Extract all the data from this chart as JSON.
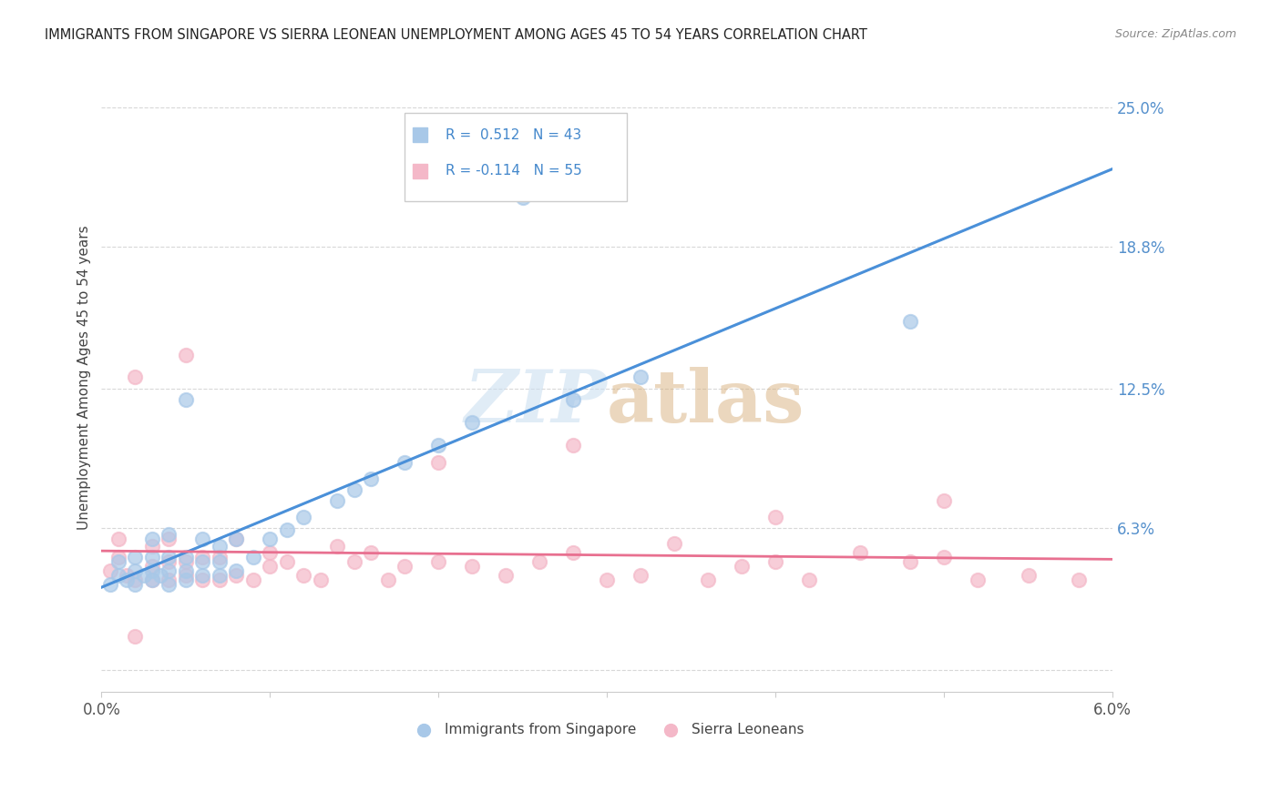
{
  "title": "IMMIGRANTS FROM SINGAPORE VS SIERRA LEONEAN UNEMPLOYMENT AMONG AGES 45 TO 54 YEARS CORRELATION CHART",
  "source": "Source: ZipAtlas.com",
  "ylabel": "Unemployment Among Ages 45 to 54 years",
  "xlim": [
    0.0,
    0.06
  ],
  "ylim": [
    -0.01,
    0.27
  ],
  "yticks": [
    0.0,
    0.063,
    0.125,
    0.188,
    0.25
  ],
  "ytick_labels": [
    "",
    "6.3%",
    "12.5%",
    "18.8%",
    "25.0%"
  ],
  "xticks": [
    0.0,
    0.01,
    0.02,
    0.03,
    0.04,
    0.05,
    0.06
  ],
  "xtick_labels": [
    "0.0%",
    "",
    "",
    "",
    "",
    "",
    "6.0%"
  ],
  "legend_labels": [
    "Immigrants from Singapore",
    "Sierra Leoneans"
  ],
  "r1": 0.512,
  "n1": 43,
  "r2": -0.114,
  "n2": 55,
  "color_blue": "#a8c8e8",
  "color_pink": "#f4b8c8",
  "color_blue_line": "#4a90d9",
  "color_pink_line": "#e87090",
  "color_gray_dash": "#b0b8c0",
  "watermark_color": "#c8ddf0",
  "background_color": "#ffffff",
  "grid_color": "#d8d8d8",
  "singapore_x": [
    0.0005,
    0.001,
    0.001,
    0.0015,
    0.002,
    0.002,
    0.002,
    0.0025,
    0.003,
    0.003,
    0.003,
    0.003,
    0.0035,
    0.004,
    0.004,
    0.004,
    0.004,
    0.005,
    0.005,
    0.005,
    0.005,
    0.006,
    0.006,
    0.006,
    0.007,
    0.007,
    0.007,
    0.008,
    0.008,
    0.009,
    0.01,
    0.011,
    0.012,
    0.014,
    0.015,
    0.016,
    0.018,
    0.02,
    0.022,
    0.025,
    0.028,
    0.032,
    0.048
  ],
  "singapore_y": [
    0.038,
    0.042,
    0.048,
    0.04,
    0.038,
    0.044,
    0.05,
    0.042,
    0.04,
    0.044,
    0.05,
    0.058,
    0.042,
    0.038,
    0.044,
    0.05,
    0.06,
    0.04,
    0.044,
    0.05,
    0.12,
    0.042,
    0.048,
    0.058,
    0.042,
    0.048,
    0.055,
    0.044,
    0.058,
    0.05,
    0.058,
    0.062,
    0.068,
    0.075,
    0.08,
    0.085,
    0.092,
    0.1,
    0.11,
    0.21,
    0.12,
    0.13,
    0.155
  ],
  "sierraleone_x": [
    0.0005,
    0.001,
    0.001,
    0.0015,
    0.002,
    0.002,
    0.003,
    0.003,
    0.003,
    0.004,
    0.004,
    0.004,
    0.005,
    0.005,
    0.005,
    0.006,
    0.006,
    0.007,
    0.007,
    0.008,
    0.008,
    0.009,
    0.01,
    0.01,
    0.011,
    0.012,
    0.013,
    0.014,
    0.015,
    0.016,
    0.017,
    0.018,
    0.02,
    0.022,
    0.024,
    0.026,
    0.028,
    0.03,
    0.032,
    0.034,
    0.036,
    0.038,
    0.04,
    0.042,
    0.045,
    0.048,
    0.05,
    0.052,
    0.055,
    0.058,
    0.02,
    0.028,
    0.04,
    0.05,
    0.002
  ],
  "sierraleone_y": [
    0.044,
    0.05,
    0.058,
    0.042,
    0.04,
    0.13,
    0.04,
    0.046,
    0.055,
    0.04,
    0.048,
    0.058,
    0.042,
    0.048,
    0.14,
    0.04,
    0.05,
    0.04,
    0.05,
    0.042,
    0.058,
    0.04,
    0.046,
    0.052,
    0.048,
    0.042,
    0.04,
    0.055,
    0.048,
    0.052,
    0.04,
    0.046,
    0.048,
    0.046,
    0.042,
    0.048,
    0.052,
    0.04,
    0.042,
    0.056,
    0.04,
    0.046,
    0.048,
    0.04,
    0.052,
    0.048,
    0.075,
    0.04,
    0.042,
    0.04,
    0.092,
    0.1,
    0.068,
    0.05,
    0.015
  ]
}
